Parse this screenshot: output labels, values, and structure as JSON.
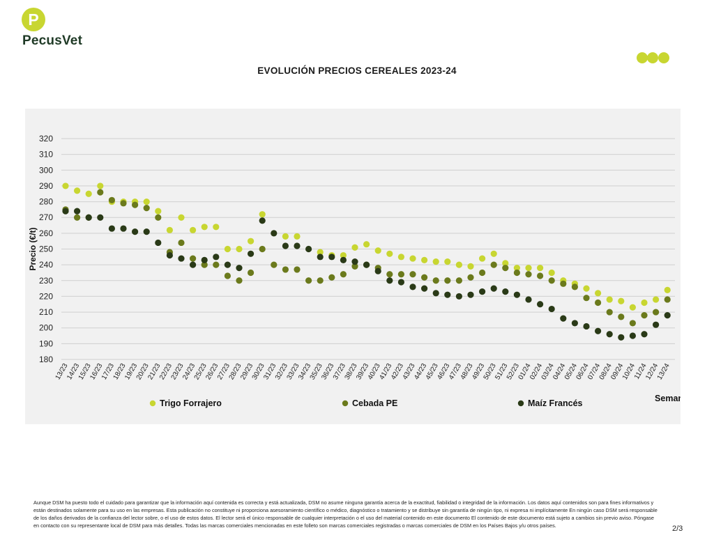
{
  "brand": {
    "name": "PecusVet",
    "logo_letter": "P",
    "colors": {
      "green": "#c8d631",
      "dark": "#1f3a26",
      "dots": "#c8d631"
    }
  },
  "page": {
    "number": "2/3"
  },
  "disclaimer": "Aunque DSM ha puesto todo el cuidado para garantizar que la información aquí contenida es correcta y está actualizada, DSM no asume ninguna garantía acerca de la exactitud, fiabilidad o integridad de la información. Los datos aquí contenidos son para fines informativos y están destinados solamente para su uso en las empresas. Esta publicación no constituye ni proporciona asesoramiento científico o médico, diagnóstico o tratamiento y se distribuye sin garantía de ningún tipo, ni expresa ni implícitamente En ningún caso DSM será responsable de los daños derivados de la confianza del lector sobre, o el uso de estos datos. El lector será el único responsable de cualquier interpretación o el uso del material contenido en este documento El contenido de este documento está sujeto a cambios sin previo aviso. Póngase en contacto con su representante local de DSM para más detalles. Todas las marcas comerciales mencionadas en este folleto son marcas comerciales registradas o marcas comerciales de DSM en los Países Bajos y/u otros países.",
  "chart_data": {
    "type": "scatter",
    "title": "EVOLUCIÓN PRECIOS CEREALES 2023-24",
    "xlabel": "Semana",
    "ylabel": "Precio (€/t)",
    "ylim": [
      180,
      320
    ],
    "yticks": [
      180,
      190,
      200,
      210,
      220,
      230,
      240,
      250,
      260,
      270,
      280,
      290,
      300,
      310,
      320
    ],
    "grid": true,
    "legend_position": "bottom",
    "categories": [
      "13/23",
      "14/23",
      "15/23",
      "16/23",
      "17/23",
      "18/23",
      "19/23",
      "20/23",
      "21/23",
      "22/23",
      "23/23",
      "24/23",
      "25/23",
      "26/23",
      "27/23",
      "28/23",
      "29/23",
      "30/23",
      "31/23",
      "32/23",
      "33/23",
      "34/23",
      "35/23",
      "36/23",
      "37/23",
      "38/23",
      "39/23",
      "40/23",
      "41/23",
      "42/23",
      "43/23",
      "44/23",
      "45/23",
      "46/23",
      "47/23",
      "48/23",
      "49/23",
      "50/23",
      "51/23",
      "52/23",
      "01/24",
      "02/24",
      "03/24",
      "04/24",
      "05/24",
      "06/24",
      "07/24",
      "08/24",
      "09/24",
      "10/24",
      "11/24",
      "12/24",
      "13/24"
    ],
    "series": [
      {
        "name": "Trigo Forrajero",
        "color": "#c8d631",
        "values": [
          290,
          287,
          285,
          290,
          280,
          280,
          280,
          280,
          274,
          262,
          270,
          262,
          264,
          264,
          250,
          250,
          255,
          272,
          null,
          258,
          258,
          null,
          248,
          246,
          246,
          251,
          253,
          249,
          247,
          245,
          244,
          243,
          242,
          242,
          240,
          239,
          244,
          247,
          241,
          238,
          238,
          238,
          235,
          230,
          228,
          225,
          222,
          218,
          217,
          213,
          216,
          218,
          224
        ]
      },
      {
        "name": "Cebada PE",
        "color": "#6b7a1c",
        "values": [
          275,
          270,
          270,
          286,
          281,
          279,
          278,
          276,
          270,
          248,
          254,
          244,
          240,
          240,
          233,
          230,
          235,
          250,
          240,
          237,
          237,
          230,
          230,
          232,
          234,
          239,
          240,
          238,
          234,
          234,
          234,
          232,
          230,
          230,
          230,
          232,
          235,
          240,
          238,
          235,
          234,
          233,
          230,
          228,
          226,
          219,
          216,
          210,
          207,
          203,
          208,
          210,
          218
        ]
      },
      {
        "name": "Maíz Francés",
        "color": "#2a3a17",
        "values": [
          274,
          274,
          270,
          270,
          263,
          263,
          261,
          261,
          254,
          246,
          244,
          240,
          243,
          245,
          240,
          238,
          247,
          268,
          260,
          252,
          252,
          250,
          245,
          245,
          243,
          242,
          240,
          236,
          230,
          229,
          226,
          225,
          222,
          221,
          220,
          221,
          223,
          225,
          223,
          221,
          218,
          215,
          212,
          206,
          203,
          201,
          198,
          196,
          194,
          195,
          196,
          202,
          208
        ]
      }
    ]
  }
}
